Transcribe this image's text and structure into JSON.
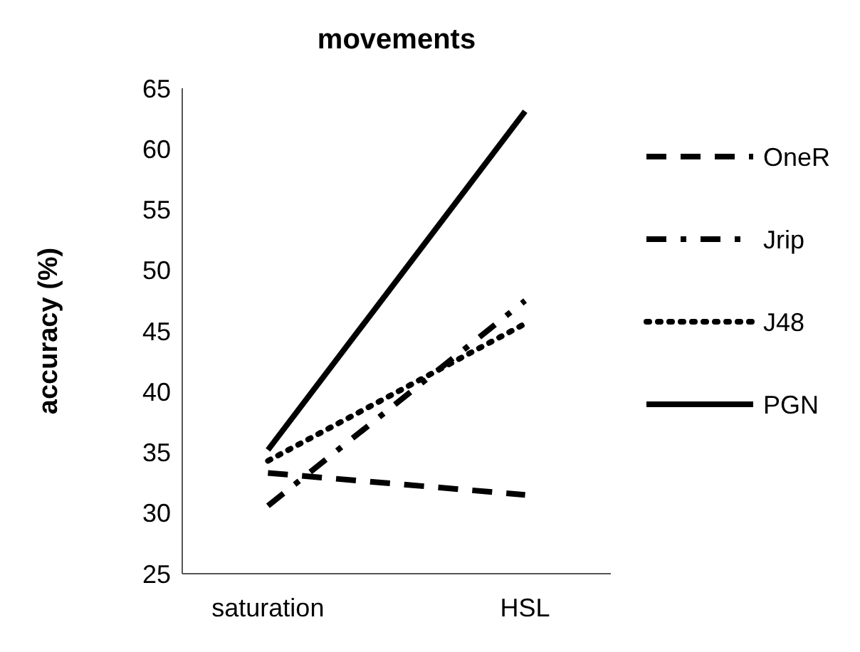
{
  "chart_data": {
    "type": "line",
    "title": "movements",
    "ylabel": "accuracy (%)",
    "categories": [
      "saturation",
      "HSL"
    ],
    "series": [
      {
        "name": "OneR",
        "color": "#000000",
        "values": [
          33.3,
          31.5
        ],
        "line_style": "dashed"
      },
      {
        "name": "Jrip",
        "color": "#000000",
        "values": [
          30.6,
          47.5
        ],
        "line_style": "dashdot"
      },
      {
        "name": "J48",
        "color": "#000000",
        "values": [
          34.3,
          45.6
        ],
        "line_style": "dotted"
      },
      {
        "name": "PGN",
        "color": "#000000",
        "values": [
          35.2,
          63.1
        ],
        "line_style": "solid"
      }
    ],
    "ylim": [
      25,
      65
    ],
    "yticks": [
      25,
      30,
      35,
      40,
      45,
      50,
      55,
      60,
      65
    ],
    "grid": false,
    "legend": "right",
    "marker": "none"
  }
}
